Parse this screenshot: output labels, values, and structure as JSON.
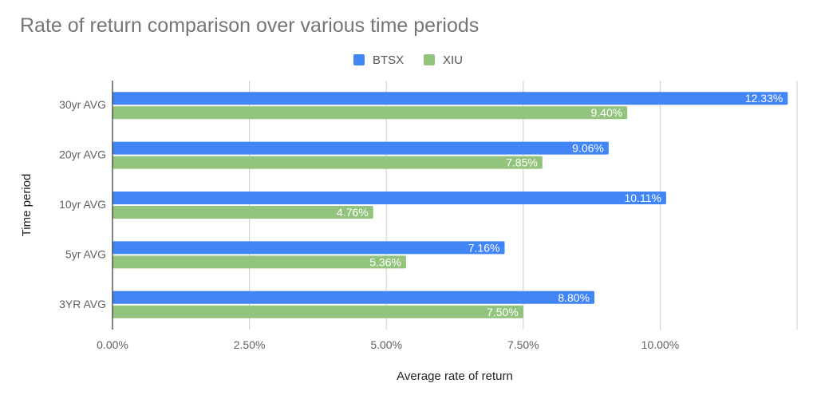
{
  "chart_data": {
    "type": "bar",
    "orientation": "horizontal",
    "title": "Rate of return comparison over various time periods",
    "xlabel": "Average rate of return",
    "ylabel": "Time period",
    "categories": [
      "30yr AVG",
      "20yr AVG",
      "10yr AVG",
      "5yr AVG",
      "3YR AVG"
    ],
    "series": [
      {
        "name": "BTSX",
        "color": "#4285f4",
        "values": [
          12.33,
          9.06,
          10.11,
          7.16,
          8.8
        ],
        "labels": [
          "12.33%",
          "9.06%",
          "10.11%",
          "7.16%",
          "8.80%"
        ]
      },
      {
        "name": "XIU",
        "color": "#93c47d",
        "values": [
          9.4,
          7.85,
          4.76,
          5.36,
          7.5
        ],
        "labels": [
          "9.40%",
          "7.85%",
          "4.76%",
          "5.36%",
          "7.50%"
        ]
      }
    ],
    "xlim": [
      0,
      12.5
    ],
    "xticks": [
      0,
      2.5,
      5,
      7.5,
      10,
      12.5
    ],
    "xtick_labels": [
      "0.00%",
      "2.50%",
      "5.00%",
      "7.50%",
      "10.00%",
      ""
    ],
    "grid": true,
    "legend_position": "top-center"
  }
}
